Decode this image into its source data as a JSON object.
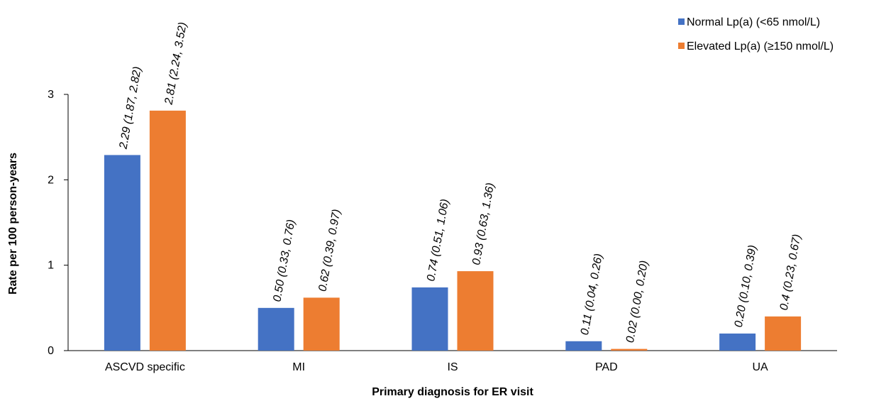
{
  "chart_data": {
    "type": "bar",
    "title": "",
    "xlabel": "Primary diagnosis for ER visit",
    "ylabel": "Rate per 100 person-years",
    "ylim": [
      0,
      3
    ],
    "yticks": [
      "0",
      "1",
      "2",
      "3"
    ],
    "grid": false,
    "legend_position": "top-right",
    "categories": [
      "ASCVD specific",
      "MI",
      "IS",
      "PAD",
      "UA"
    ],
    "series": [
      {
        "name": "Normal Lp(a) (<65 nmol/L)",
        "color": "#4472C4",
        "values": [
          2.29,
          0.5,
          0.74,
          0.11,
          0.2
        ],
        "labels": [
          "2.29 (1.87, 2.82)",
          "0.50 (0.33, 0.76)",
          "0.74 (0.51, 1.06)",
          "0.11 (0.04, 0.26)",
          "0.20 (0.10, 0.39)"
        ]
      },
      {
        "name": "Elevated Lp(a) (≥150 nmol/L)",
        "color": "#ED7D31",
        "values": [
          2.81,
          0.62,
          0.93,
          0.02,
          0.4
        ],
        "labels": [
          "2.81 (2.24, 3.52)",
          "0.62 (0.39, 0.97)",
          "0.93 (0.63, 1.36)",
          "0.02 (0.00, 0.20)",
          "0.4 (0.23, 0.67)"
        ]
      }
    ]
  }
}
